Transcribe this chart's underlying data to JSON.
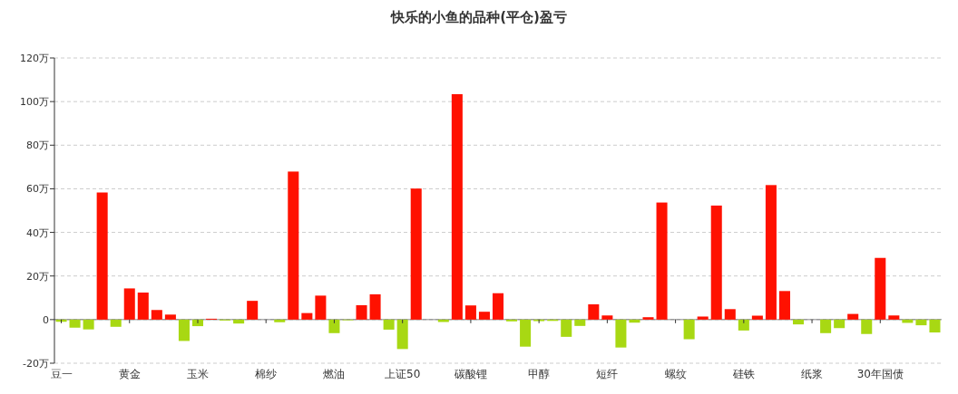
{
  "chart_data": {
    "type": "bar",
    "title": "快乐的小鱼的品种(平仓)盈亏",
    "categories": [
      "豆一",
      null,
      null,
      null,
      null,
      "黄金",
      null,
      null,
      null,
      null,
      "玉米",
      null,
      null,
      null,
      null,
      "棉纱",
      null,
      null,
      null,
      null,
      "燃油",
      null,
      null,
      null,
      null,
      "上证50",
      null,
      null,
      null,
      null,
      "碳酸锂",
      null,
      null,
      null,
      null,
      "甲醇",
      null,
      null,
      null,
      null,
      "短纤",
      null,
      null,
      null,
      null,
      "螺纹",
      null,
      null,
      null,
      null,
      "硅铁",
      null,
      null,
      null,
      null,
      "纸浆",
      null,
      null,
      null,
      null,
      "30年国债",
      null,
      null,
      null,
      null
    ],
    "values": [
      -1,
      -3.7,
      -4.5,
      58.3,
      -3.3,
      14.3,
      12.4,
      4.4,
      2.3,
      -9.8,
      -3,
      0.4,
      -0.4,
      -1.8,
      8.6,
      0,
      -1.2,
      67.9,
      3,
      11,
      -6.2,
      -0.3,
      6.6,
      11.6,
      -4.6,
      -13.5,
      60.1,
      0,
      -1.1,
      103.4,
      6.5,
      3.6,
      12.1,
      -0.8,
      -12.4,
      -0.7,
      -0.6,
      -7.9,
      -2.9,
      7,
      1.9,
      -12.8,
      -1.4,
      1.1,
      53.7,
      0,
      -9,
      1.4,
      52.3,
      4.8,
      -5,
      1.8,
      61.7,
      13.1,
      -2.2,
      0,
      -6.2,
      -3.9,
      2.6,
      -6.6,
      28.3,
      1.9,
      -1.5,
      -2.6,
      -5.9
    ],
    "colors": [
      "#a8d813",
      "#a8d813",
      "#a8d813",
      "#ff1100",
      "#a8d813",
      "#ff1100",
      "#ff1100",
      "#ff1100",
      "#ff1100",
      "#a8d813",
      "#a8d813",
      "#ff1100",
      "#a8d813",
      "#a8d813",
      "#ff1100",
      "#ff1100",
      "#a8d813",
      "#ff1100",
      "#ff1100",
      "#ff1100",
      "#a8d813",
      "#a8d813",
      "#ff1100",
      "#ff1100",
      "#a8d813",
      "#a8d813",
      "#ff1100",
      "#ff1100",
      "#a8d813",
      "#ff1100",
      "#ff1100",
      "#ff1100",
      "#ff1100",
      "#a8d813",
      "#a8d813",
      "#a8d813",
      "#a8d813",
      "#a8d813",
      "#a8d813",
      "#ff1100",
      "#ff1100",
      "#a8d813",
      "#a8d813",
      "#ff1100",
      "#ff1100",
      "#ff1100",
      "#a8d813",
      "#ff1100",
      "#ff1100",
      "#ff1100",
      "#a8d813",
      "#ff1100",
      "#ff1100",
      "#ff1100",
      "#a8d813",
      "#ff1100",
      "#a8d813",
      "#a8d813",
      "#ff1100",
      "#a8d813",
      "#ff1100",
      "#ff1100",
      "#a8d813",
      "#a8d813",
      "#a8d813"
    ],
    "ylim": [
      -20,
      120
    ],
    "yticks": [
      {
        "value": -20,
        "label": "-20万"
      },
      {
        "value": 0,
        "label": "0"
      },
      {
        "value": 20,
        "label": "20万"
      },
      {
        "value": 40,
        "label": "40万"
      },
      {
        "value": 60,
        "label": "60万"
      },
      {
        "value": 80,
        "label": "80万"
      },
      {
        "value": 100,
        "label": "100万"
      },
      {
        "value": 120,
        "label": "120万"
      }
    ],
    "grid": "y"
  }
}
